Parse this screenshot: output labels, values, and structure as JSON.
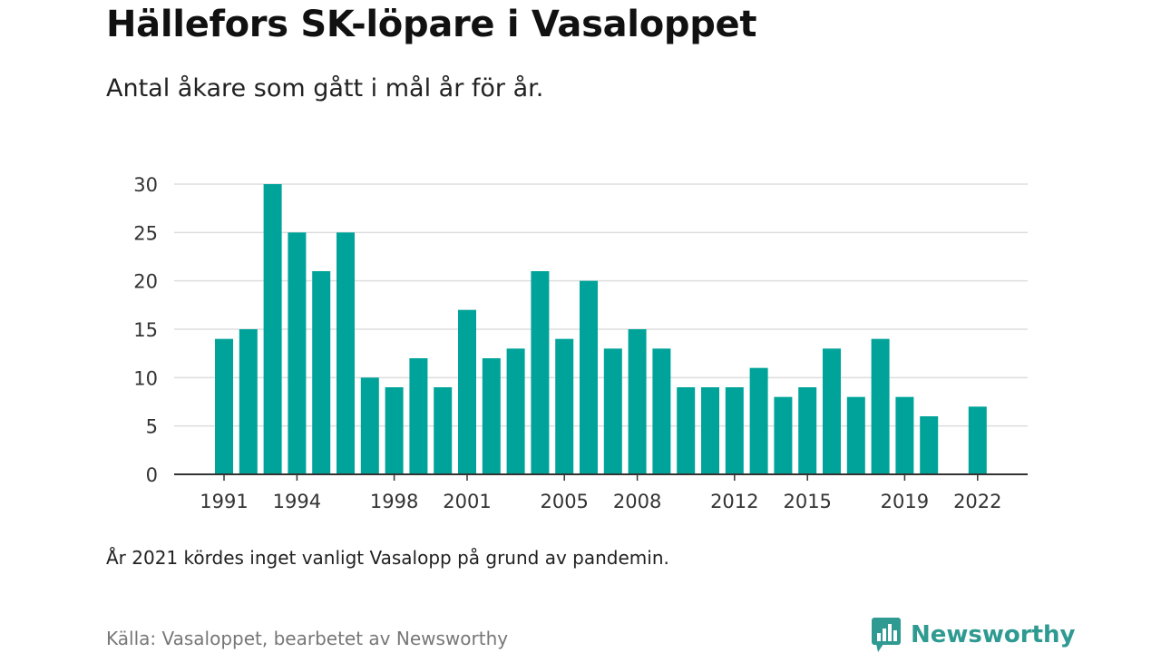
{
  "header": {
    "title": "Hällefors SK-löpare i Vasaloppet",
    "subtitle": "Antal åkare som gått i mål år för år."
  },
  "footer": {
    "note": "År 2021 kördes inget vanligt Vasalopp på grund av pandemin.",
    "source": "Källa: Vasaloppet, bearbetet av Newsworthy",
    "brand": "Newsworthy",
    "brand_icon": "newsworthy-logo-icon"
  },
  "colors": {
    "bar": "#00a39a",
    "grid": "#dddddd",
    "axis": "#333333",
    "brand": "#2e9a91"
  },
  "chart_data": {
    "type": "bar",
    "title": "Hällefors SK-löpare i Vasaloppet",
    "subtitle": "Antal åkare som gått i mål år för år.",
    "xlabel": "",
    "ylabel": "",
    "ylim": [
      0,
      30
    ],
    "yticks": [
      0,
      5,
      10,
      15,
      20,
      25,
      30
    ],
    "xticks": [
      "1991",
      "1994",
      "1998",
      "2001",
      "2005",
      "2008",
      "2012",
      "2015",
      "2019",
      "2022"
    ],
    "grid": true,
    "categories": [
      "1991",
      "1992",
      "1993",
      "1994",
      "1995",
      "1996",
      "1997",
      "1998",
      "1999",
      "2000",
      "2001",
      "2002",
      "2003",
      "2004",
      "2005",
      "2006",
      "2007",
      "2008",
      "2009",
      "2010",
      "2011",
      "2012",
      "2013",
      "2014",
      "2015",
      "2016",
      "2017",
      "2018",
      "2019",
      "2020",
      "2021",
      "2022"
    ],
    "values": [
      14,
      15,
      30,
      25,
      21,
      25,
      10,
      9,
      12,
      9,
      17,
      12,
      13,
      21,
      14,
      20,
      13,
      15,
      13,
      9,
      9,
      9,
      11,
      8,
      9,
      13,
      8,
      14,
      8,
      6,
      null,
      7
    ]
  }
}
